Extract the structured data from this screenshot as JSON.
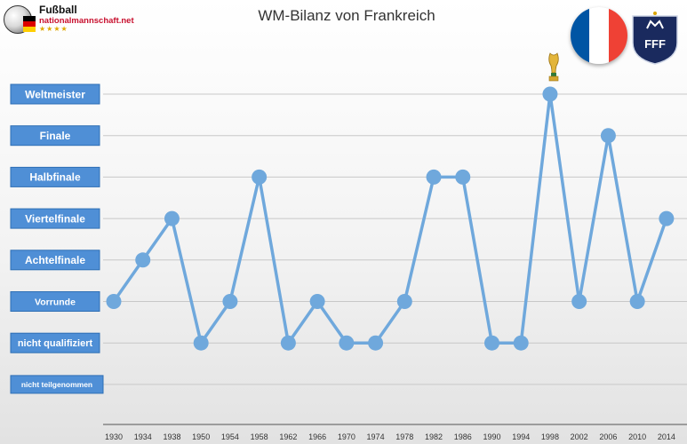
{
  "header": {
    "logo_title": "Fußball",
    "logo_subtitle": "nationalmannschaft.net",
    "logo_stars": "★★★★",
    "chart_title": "WM-Bilanz von Frankreich",
    "flag_colors": [
      "#0055a4",
      "#ffffff",
      "#ef4135"
    ],
    "crest_text": "FFF",
    "crest_color": "#1a2a5e"
  },
  "chart_data": {
    "type": "line",
    "title": "WM-Bilanz von Frankreich",
    "categories": [
      "1930",
      "1934",
      "1938",
      "1950",
      "1954",
      "1958",
      "1962",
      "1966",
      "1970",
      "1974",
      "1978",
      "1982",
      "1986",
      "1990",
      "1994",
      "1998",
      "2002",
      "2006",
      "2010",
      "2014"
    ],
    "levels": [
      "nicht teilgenommen",
      "nicht qualifiziert",
      "Vorrunde",
      "Achtelfinale",
      "Viertelfinale",
      "Halbfinale",
      "Finale",
      "Weltmeister"
    ],
    "series": [
      {
        "values": [
          "Vorrunde",
          "Achtelfinale",
          "Viertelfinale",
          "nicht qualifiziert",
          "Vorrunde",
          "Halbfinale",
          "nicht qualifiziert",
          "Vorrunde",
          "nicht qualifiziert",
          "nicht qualifiziert",
          "Vorrunde",
          "Halbfinale",
          "Halbfinale",
          "nicht qualifiziert",
          "nicht qualifiziert",
          "Weltmeister",
          "Vorrunde",
          "Finale",
          "Vorrunde",
          "Viertelfinale"
        ],
        "color": "#6fa8dc"
      }
    ],
    "grid": true,
    "legend": "none",
    "trophy_year": "1998",
    "label_box_color": "#4f8fd6",
    "label_box_border": "#2e6fb5"
  }
}
